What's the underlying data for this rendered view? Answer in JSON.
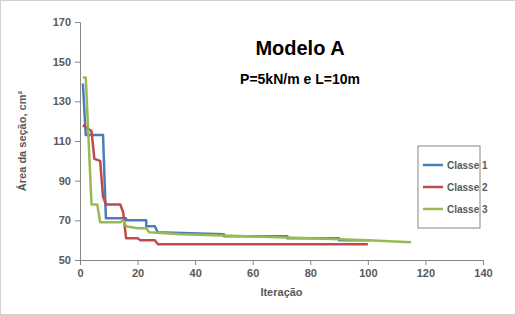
{
  "chart_data": {
    "type": "line",
    "title": "Modelo A",
    "subtitle": "P=5kN/m e L=10m",
    "x_label": "Iteração",
    "y_label": "Área da seção, cm²",
    "xlim": [
      0,
      140
    ],
    "xticks": [
      0,
      20,
      40,
      60,
      80,
      100,
      120,
      140
    ],
    "ylim": [
      50,
      170
    ],
    "yticks": [
      50,
      70,
      90,
      110,
      130,
      150,
      170
    ],
    "grid": false,
    "legend": "right",
    "series": [
      {
        "name": "Classe 1",
        "color": "#4a7ebb",
        "x": [
          1,
          2,
          8,
          9,
          16,
          16,
          23,
          23,
          26,
          27,
          50,
          50,
          72,
          72,
          90,
          90,
          101
        ],
        "values": [
          139,
          113,
          113,
          71,
          71,
          70,
          70,
          67,
          67,
          64,
          63,
          62,
          62,
          61,
          61,
          60,
          60
        ]
      },
      {
        "name": "Classe 2",
        "color": "#be4b48",
        "x": [
          1,
          2,
          4,
          5,
          7,
          8,
          9,
          14,
          15,
          16,
          20,
          21,
          26,
          27,
          100
        ],
        "values": [
          118,
          117,
          115,
          101,
          100,
          82,
          78,
          78,
          74,
          61,
          61,
          60,
          60,
          58,
          58
        ]
      },
      {
        "name": "Classe 3",
        "color": "#98b954",
        "x": [
          1,
          2,
          3,
          4,
          6,
          7,
          14,
          15,
          16,
          20,
          23,
          24,
          35,
          80,
          100,
          115
        ],
        "values": [
          142,
          142,
          110,
          78,
          78,
          69,
          69,
          70,
          67,
          66,
          66,
          64,
          63,
          61,
          60,
          59
        ]
      }
    ]
  }
}
